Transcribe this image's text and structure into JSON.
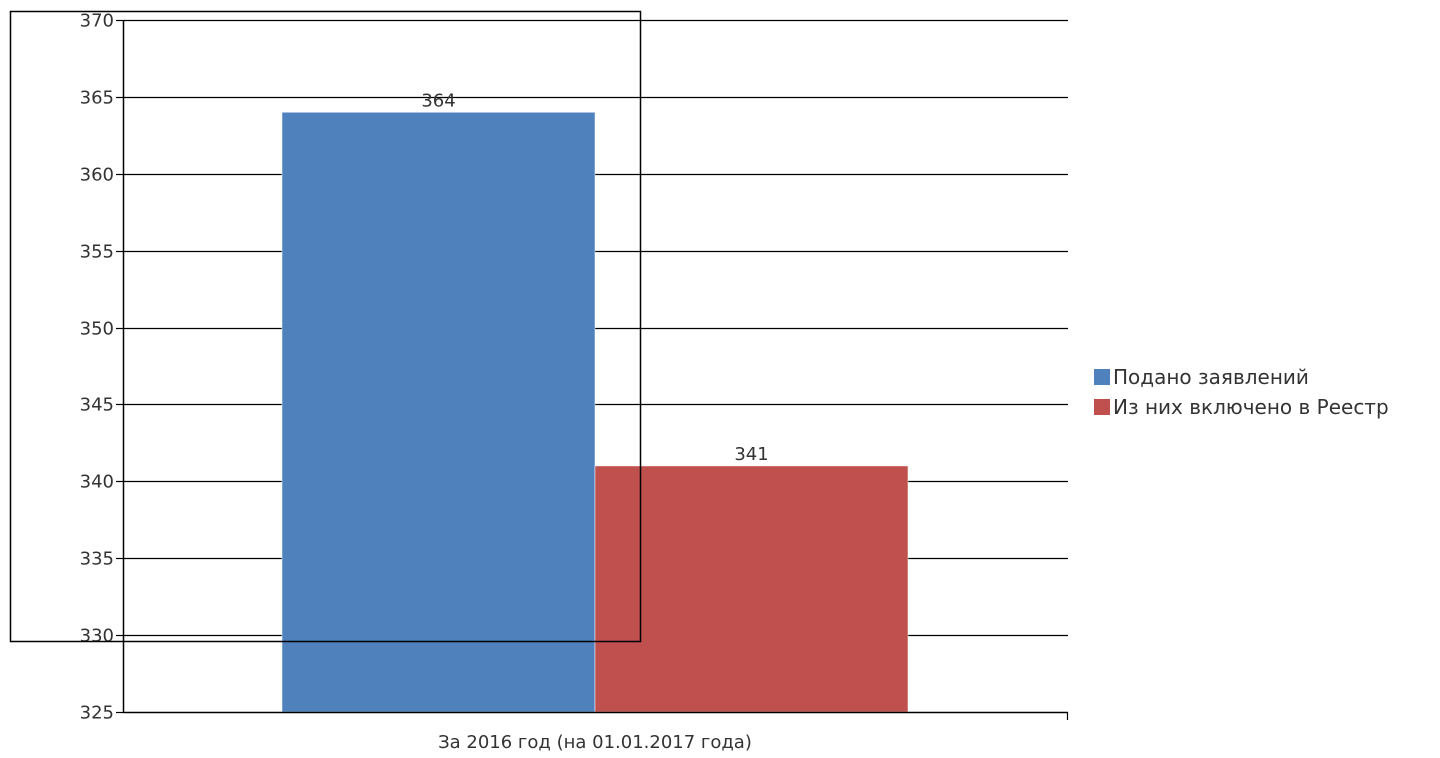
{
  "chart_data": {
    "type": "bar",
    "title": "",
    "xlabel": "",
    "ylabel": "",
    "categories": [
      "За 2016 год (на 01.01.2017 года)"
    ],
    "series": [
      {
        "name": "Подано заявлений",
        "values": [
          364
        ],
        "color": "#4F81BD"
      },
      {
        "name": "Из них включено в Реестр",
        "values": [
          341
        ],
        "color": "#C0504D"
      }
    ],
    "ylim": [
      325,
      370
    ],
    "yticks": [
      325,
      330,
      335,
      340,
      345,
      350,
      355,
      360,
      365,
      370
    ],
    "grid": true,
    "legend_position": "right"
  }
}
